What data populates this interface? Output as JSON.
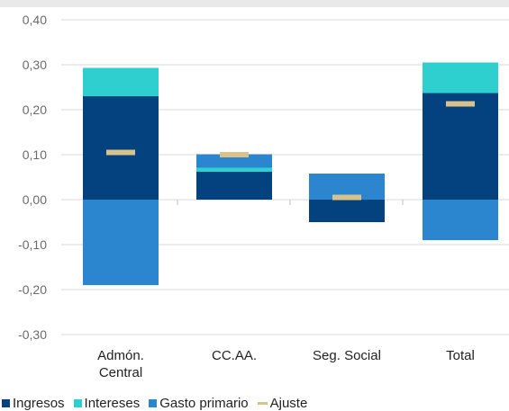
{
  "colors": {
    "ingresos": "#03427f",
    "intereses": "#2dcfcf",
    "gasto_primario": "#2c86cf",
    "ajuste": "#d9c28a",
    "grid": "#d9d9d9"
  },
  "chart_data": {
    "type": "bar",
    "stacked": true,
    "categories": [
      "Admón. Central",
      "CC.AA.",
      "Seg. Social",
      "Total"
    ],
    "category_lines": [
      [
        "Admón.",
        "Central"
      ],
      [
        "CC.AA."
      ],
      [
        "Seg. Social"
      ],
      [
        "Total"
      ]
    ],
    "y_ticks": [
      "0,40",
      "0,30",
      "0,20",
      "0,10",
      "0,00",
      "-0,10",
      "-0,20",
      "-0,30"
    ],
    "ylim": [
      -0.3,
      0.4
    ],
    "grid": true,
    "legend_position": "bottom",
    "series": [
      {
        "name": "Ingresos",
        "key": "ingresos",
        "values": [
          0.23,
          0.062,
          -0.05,
          0.237
        ]
      },
      {
        "name": "Intereses",
        "key": "intereses",
        "values": [
          0.063,
          0.009,
          0.0,
          0.068
        ]
      },
      {
        "name": "Gasto primario",
        "key": "gasto_primario",
        "values": [
          -0.19,
          0.03,
          0.058,
          -0.09
        ]
      },
      {
        "name": "Ajuste",
        "key": "ajuste",
        "type": "marker",
        "values": [
          0.105,
          0.1,
          0.005,
          0.213
        ]
      }
    ]
  },
  "legend": {
    "items": [
      {
        "label": "Ingresos",
        "key": "ingresos",
        "shape": "square"
      },
      {
        "label": "Intereses",
        "key": "intereses",
        "shape": "square"
      },
      {
        "label": "Gasto primario",
        "key": "gasto_primario",
        "shape": "square"
      },
      {
        "label": "Ajuste",
        "key": "ajuste",
        "shape": "line"
      }
    ]
  }
}
